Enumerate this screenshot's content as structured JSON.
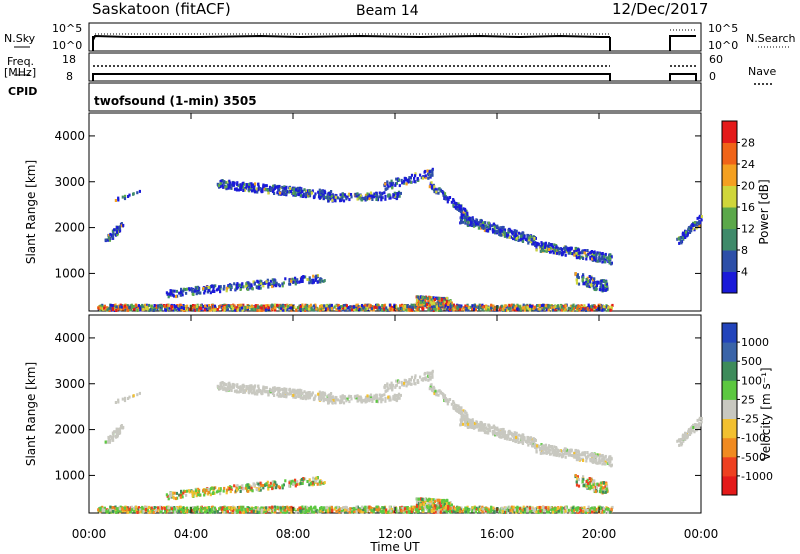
{
  "header": {
    "site": "Saskatoon (fitACF)",
    "beam": "Beam 14",
    "date": "12/Dec/2017"
  },
  "side_labels": {
    "nsky": "N.Sky",
    "nsearch": "N.Search",
    "freq": "Freq.",
    "freq_unit": "[MHz]",
    "cpid": "CPID",
    "nave": "Nave"
  },
  "noise_axis": {
    "left": [
      "10^5",
      "10^0"
    ],
    "right": [
      "10^5",
      "10^0"
    ]
  },
  "freq_axis": {
    "left": [
      "18",
      "8"
    ],
    "right": [
      "60",
      "0"
    ]
  },
  "cpid_text": "twofsound (1-min) 3505",
  "chart_data": [
    {
      "type": "heatmap",
      "name": "power",
      "ylabel": "Slant Range [km]",
      "xlabel": "",
      "ylim": [
        180,
        4500
      ],
      "y_ticks": [
        "1000",
        "2000",
        "3000",
        "4000"
      ],
      "colorbar": {
        "label": "Power [dB]",
        "ticks": [
          "4",
          "8",
          "12",
          "16",
          "20",
          "24",
          "28"
        ],
        "colors": [
          "#1a1ad8",
          "#2d4fa8",
          "#3f8a6a",
          "#5ba84a",
          "#cfd63a",
          "#f4a020",
          "#f06418",
          "#e41a1a"
        ]
      }
    },
    {
      "type": "heatmap",
      "name": "velocity",
      "ylabel": "Slant Range [km]",
      "xlabel": "Time UT",
      "ylim": [
        180,
        4500
      ],
      "y_ticks": [
        "1000",
        "2000",
        "3000",
        "4000"
      ],
      "x_ticks": [
        "00:00",
        "04:00",
        "08:00",
        "12:00",
        "16:00",
        "20:00",
        "00:00"
      ],
      "colorbar": {
        "label": "Velocity [m s⁻¹]",
        "ticks": [
          "1000",
          "500",
          "100",
          "25",
          "-25",
          "-100",
          "-500",
          "-1000"
        ],
        "colors": [
          "#2244bb",
          "#3a64a8",
          "#3d8b5a",
          "#5cc840",
          "#c8c8c0",
          "#f2c030",
          "#f08a20",
          "#ee4020",
          "#e41a1a"
        ]
      }
    }
  ]
}
